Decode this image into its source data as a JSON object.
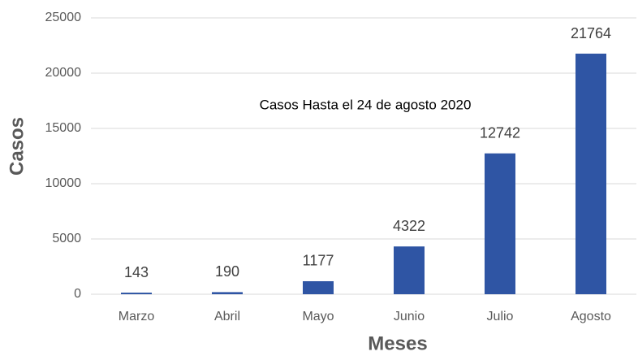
{
  "chart_data": {
    "type": "bar",
    "annotation": "Casos Hasta el 24 de agosto 2020",
    "x_label": "Meses",
    "y_label": "Casos",
    "categories": [
      "Marzo",
      "Abril",
      "Mayo",
      "Junio",
      "Julio",
      "Agosto"
    ],
    "values": [
      143,
      190,
      1177,
      4322,
      12742,
      21764
    ],
    "color": "#2f55a4",
    "ylim": [
      0,
      25000
    ],
    "yticks": [
      0,
      5000,
      10000,
      15000,
      20000,
      25000
    ],
    "grid": true
  }
}
